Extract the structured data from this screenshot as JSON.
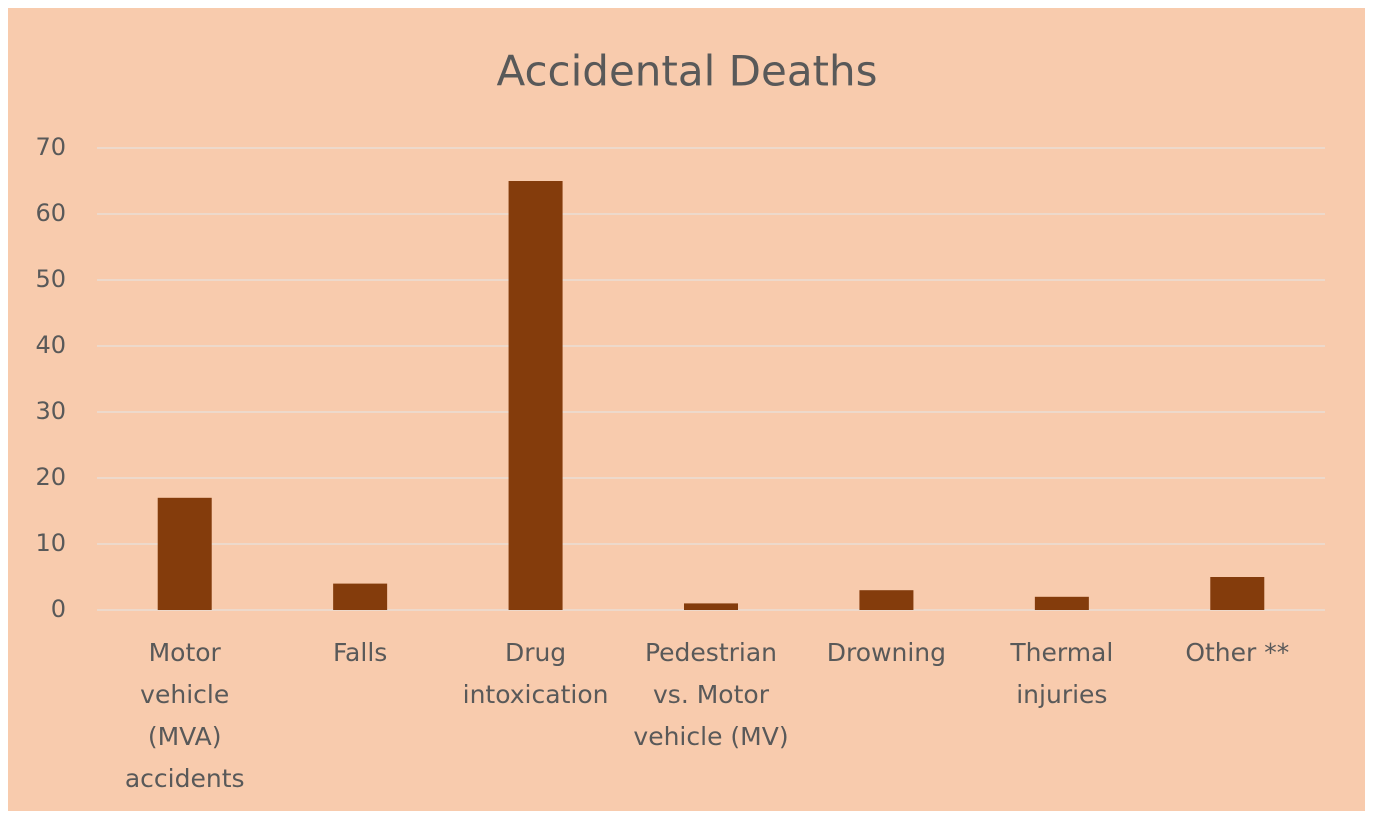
{
  "chart_data": {
    "type": "bar",
    "title": "Accidental Deaths",
    "categories": [
      "Motor vehicle (MVA) accidents",
      "Falls",
      "Drug intoxication",
      "Pedestrian vs. Motor vehicle (MV)",
      "Drowning",
      "Thermal injuries",
      "Other **"
    ],
    "values": [
      17,
      4,
      65,
      1,
      3,
      2,
      5
    ],
    "color": "#843c0c",
    "ylim": [
      0,
      70
    ],
    "yticks": [
      0,
      10,
      20,
      30,
      40,
      50,
      60,
      70
    ],
    "grid": true
  }
}
